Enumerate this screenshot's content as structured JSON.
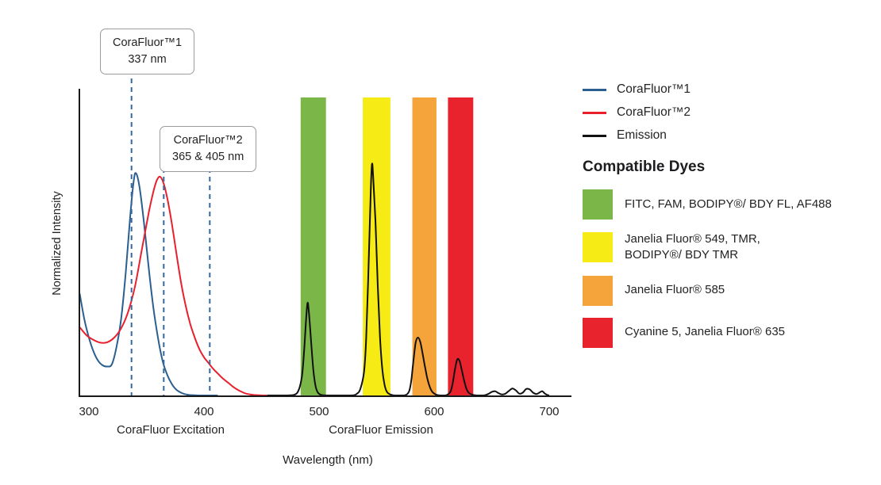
{
  "legend": {
    "compatible_dyes_title": "Compatible Dyes"
  },
  "chart_data": {
    "type": "line",
    "title": "",
    "xlabel": "Wavelength (nm)",
    "ylabel": "Normalized Intensity",
    "x_ticks": [
      300,
      400,
      500,
      600,
      700
    ],
    "y_ticks": [],
    "x_range": [
      300,
      710
    ],
    "y_range": [
      0,
      1
    ],
    "grid": false,
    "legend_position": "right",
    "axis_section_labels": {
      "excitation": "CoraFluor Excitation",
      "emission": "CoraFluor Emission"
    },
    "marker_color": "#36699E",
    "annotations": [
      {
        "line1": "CoraFluor™1",
        "line2": "337 nm",
        "markers_nm": [
          337
        ]
      },
      {
        "line1": "CoraFluor™2",
        "line2": "365 & 405 nm",
        "markers_nm": [
          365,
          405
        ]
      }
    ],
    "excitation_peaks": {
      "corafluor1_nm": 337,
      "corafluor2_nm": [
        365,
        405
      ]
    },
    "emission_peaks_nm": [
      490,
      545,
      587,
      621
    ],
    "dye_bands": [
      {
        "name": "green",
        "from_nm": 484,
        "to_nm": 506,
        "color": "#7AB648",
        "dyes": "FITC, FAM, BODIPY®/ BDY FL, AF488"
      },
      {
        "name": "yellow",
        "from_nm": 538,
        "to_nm": 562,
        "color": "#F7EB15",
        "dyes": "Janelia Fluor® 549, TMR,\nBODIPY®/ BDY TMR"
      },
      {
        "name": "orange",
        "from_nm": 581,
        "to_nm": 602,
        "color": "#F5A43B",
        "dyes": "Janelia Fluor® 585"
      },
      {
        "name": "red",
        "from_nm": 612,
        "to_nm": 634,
        "color": "#E8232E",
        "dyes": "Cyanine 5, Janelia Fluor® 635"
      }
    ],
    "series": [
      {
        "name": "CoraFluor™1",
        "color": "#2A5F8F",
        "width": 2,
        "points": [
          [
            292,
            0.44
          ],
          [
            296,
            0.33
          ],
          [
            300,
            0.25
          ],
          [
            304,
            0.19
          ],
          [
            308,
            0.15
          ],
          [
            312,
            0.13
          ],
          [
            316,
            0.125
          ],
          [
            320,
            0.135
          ],
          [
            324,
            0.21
          ],
          [
            328,
            0.33
          ],
          [
            332,
            0.53
          ],
          [
            336,
            0.78
          ],
          [
            339,
            0.93
          ],
          [
            341,
            0.96
          ],
          [
            344,
            0.9
          ],
          [
            348,
            0.74
          ],
          [
            352,
            0.55
          ],
          [
            356,
            0.38
          ],
          [
            360,
            0.25
          ],
          [
            364,
            0.15
          ],
          [
            368,
            0.09
          ],
          [
            372,
            0.05
          ],
          [
            376,
            0.025
          ],
          [
            381,
            0.01
          ],
          [
            386,
            0.003
          ],
          [
            392,
            0.001
          ],
          [
            400,
            0
          ],
          [
            412,
            0
          ]
        ]
      },
      {
        "name": "CoraFluor™2",
        "color": "#E8202E",
        "width": 2,
        "points": [
          [
            292,
            0.295
          ],
          [
            298,
            0.26
          ],
          [
            304,
            0.24
          ],
          [
            310,
            0.228
          ],
          [
            316,
            0.23
          ],
          [
            322,
            0.25
          ],
          [
            328,
            0.29
          ],
          [
            334,
            0.36
          ],
          [
            340,
            0.47
          ],
          [
            346,
            0.63
          ],
          [
            352,
            0.79
          ],
          [
            356,
            0.88
          ],
          [
            359,
            0.93
          ],
          [
            362,
            0.945
          ],
          [
            365,
            0.915
          ],
          [
            368,
            0.855
          ],
          [
            372,
            0.745
          ],
          [
            376,
            0.615
          ],
          [
            380,
            0.49
          ],
          [
            384,
            0.39
          ],
          [
            388,
            0.31
          ],
          [
            392,
            0.25
          ],
          [
            396,
            0.2
          ],
          [
            400,
            0.165
          ],
          [
            404,
            0.14
          ],
          [
            408,
            0.115
          ],
          [
            412,
            0.095
          ],
          [
            416,
            0.075
          ],
          [
            421,
            0.055
          ],
          [
            426,
            0.035
          ],
          [
            431,
            0.02
          ],
          [
            436,
            0.009
          ],
          [
            442,
            0.003
          ],
          [
            448,
            0.001
          ],
          [
            455,
            0
          ]
        ]
      },
      {
        "name": "Emission",
        "color": "#111111",
        "width": 2,
        "points": [
          [
            455,
            0
          ],
          [
            470,
            0
          ],
          [
            478,
            0.002
          ],
          [
            482,
            0.02
          ],
          [
            485,
            0.08
          ],
          [
            487,
            0.19
          ],
          [
            489,
            0.35
          ],
          [
            490,
            0.4
          ],
          [
            491,
            0.37
          ],
          [
            493,
            0.24
          ],
          [
            495,
            0.11
          ],
          [
            497,
            0.04
          ],
          [
            499,
            0.012
          ],
          [
            502,
            0.002
          ],
          [
            508,
            0
          ],
          [
            528,
            0
          ],
          [
            533,
            0.008
          ],
          [
            536,
            0.03
          ],
          [
            539,
            0.1
          ],
          [
            541,
            0.25
          ],
          [
            543,
            0.55
          ],
          [
            545,
            0.9
          ],
          [
            546,
            1.0
          ],
          [
            547,
            0.95
          ],
          [
            549,
            0.75
          ],
          [
            551,
            0.48
          ],
          [
            553,
            0.25
          ],
          [
            555,
            0.11
          ],
          [
            557,
            0.045
          ],
          [
            559,
            0.015
          ],
          [
            562,
            0.004
          ],
          [
            566,
            0
          ],
          [
            574,
            0
          ],
          [
            578,
            0.015
          ],
          [
            580,
            0.06
          ],
          [
            582,
            0.15
          ],
          [
            584,
            0.23
          ],
          [
            586,
            0.25
          ],
          [
            588,
            0.23
          ],
          [
            590,
            0.18
          ],
          [
            592,
            0.125
          ],
          [
            594,
            0.075
          ],
          [
            596,
            0.04
          ],
          [
            598,
            0.018
          ],
          [
            601,
            0.005
          ],
          [
            605,
            0
          ],
          [
            610,
            0
          ],
          [
            614,
            0.015
          ],
          [
            616,
            0.05
          ],
          [
            618,
            0.11
          ],
          [
            620,
            0.155
          ],
          [
            622,
            0.15
          ],
          [
            624,
            0.11
          ],
          [
            626,
            0.065
          ],
          [
            628,
            0.03
          ],
          [
            630,
            0.012
          ],
          [
            633,
            0.003
          ],
          [
            637,
            0
          ],
          [
            643,
            0
          ],
          [
            647,
            0.006
          ],
          [
            650,
            0.015
          ],
          [
            653,
            0.018
          ],
          [
            656,
            0.01
          ],
          [
            659,
            0.004
          ],
          [
            662,
            0.008
          ],
          [
            665,
            0.02
          ],
          [
            668,
            0.03
          ],
          [
            671,
            0.022
          ],
          [
            674,
            0.008
          ],
          [
            677,
            0.012
          ],
          [
            680,
            0.028
          ],
          [
            683,
            0.026
          ],
          [
            686,
            0.012
          ],
          [
            689,
            0.006
          ],
          [
            692,
            0.014
          ],
          [
            694,
            0.018
          ],
          [
            696,
            0.009
          ],
          [
            698,
            0.003
          ],
          [
            700,
            0
          ]
        ]
      }
    ]
  }
}
